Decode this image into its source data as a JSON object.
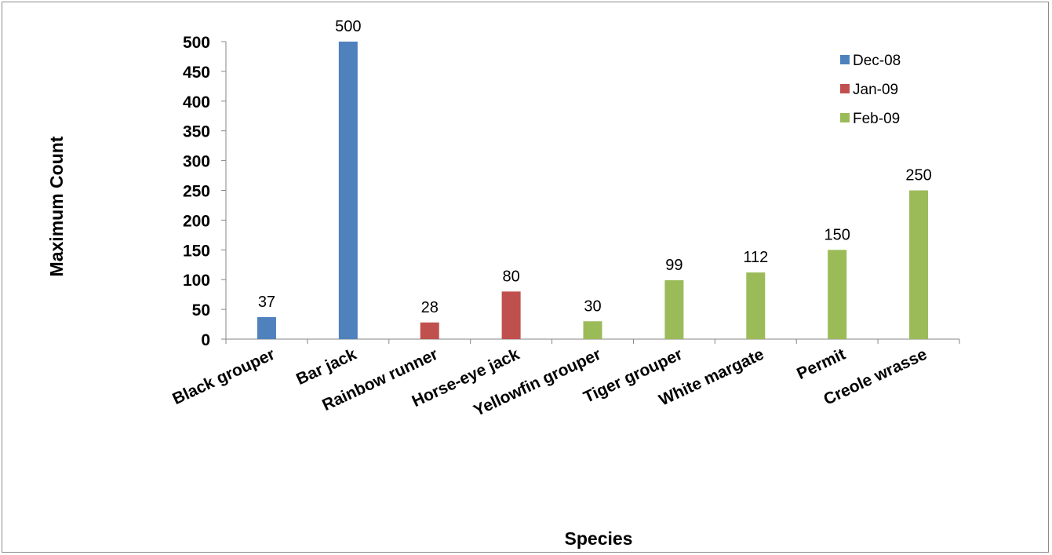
{
  "chart_data": {
    "type": "bar",
    "title": "",
    "xlabel": "Species",
    "ylabel": "Maximum Count",
    "ylim": [
      0,
      500
    ],
    "yticks": [
      0,
      50,
      100,
      150,
      200,
      250,
      300,
      350,
      400,
      450,
      500
    ],
    "grid": false,
    "legend_position": "top-right",
    "categories": [
      "Black grouper",
      "Bar jack",
      "Rainbow runner",
      "Horse-eye jack",
      "Yellowfin grouper",
      "Tiger grouper",
      "White margate",
      "Permit",
      "Creole wrasse"
    ],
    "series": [
      {
        "name": "Dec-08",
        "color": "#4f81bd",
        "values": [
          37,
          500,
          null,
          null,
          null,
          null,
          null,
          null,
          null
        ]
      },
      {
        "name": "Jan-09",
        "color": "#c0504d",
        "values": [
          null,
          null,
          28,
          80,
          null,
          null,
          null,
          null,
          null
        ]
      },
      {
        "name": "Feb-09",
        "color": "#9bbb59",
        "values": [
          null,
          null,
          null,
          null,
          30,
          99,
          112,
          150,
          250
        ]
      }
    ]
  }
}
